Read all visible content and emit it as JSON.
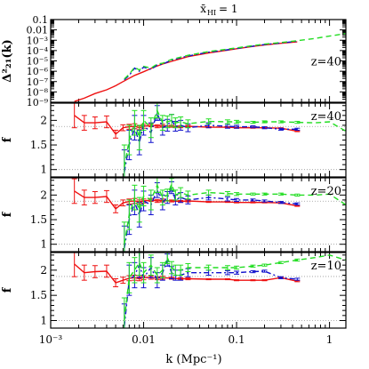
{
  "figure": {
    "title": "x̄_HI = 1",
    "title_main": "x̄",
    "title_sub": "HI",
    "title_value": "= 1",
    "xlabel": "k (Mpc⁻¹)"
  },
  "colors": {
    "red": "#ee1111",
    "green": "#22dd22",
    "blue": "#1111cc",
    "axis": "#000000",
    "ref": "#999999"
  },
  "chart_data": [
    {
      "panel": "top",
      "type": "line",
      "ylabel": "Δ²₂₁(k)",
      "annotation": "z=40",
      "xscale": "log",
      "yscale": "log",
      "xlim": [
        0.001,
        1.5
      ],
      "ylim": [
        1e-09,
        0.1
      ],
      "yticks": [
        "10⁻⁹",
        "10⁻⁸",
        "10⁻⁷",
        "10⁻⁶",
        "10⁻⁵",
        "10⁻⁴",
        "10⁻³",
        "0.01",
        "0.1"
      ],
      "xticks": [
        "10⁻³",
        "0.01",
        "0.1",
        "1"
      ],
      "series": [
        {
          "color": "red",
          "style": "solid",
          "x": [
            0.0018,
            0.0023,
            0.003,
            0.004,
            0.005,
            0.006,
            0.008,
            0.01,
            0.013,
            0.016,
            0.02,
            0.025,
            0.03,
            0.05,
            0.08,
            0.1,
            0.15,
            0.2,
            0.3,
            0.45
          ],
          "y": [
            1.2e-09,
            2.5e-09,
            7e-09,
            1.6e-08,
            4e-08,
            1e-07,
            4e-07,
            9e-07,
            2.5e-06,
            5e-06,
            9e-06,
            1.6e-05,
            2.6e-05,
            6e-05,
            0.00011,
            0.00015,
            0.00025,
            0.00035,
            0.0005,
            0.0007
          ]
        },
        {
          "color": "blue",
          "style": "dashdot",
          "x": [
            0.0062,
            0.007,
            0.008,
            0.009,
            0.01,
            0.012,
            0.014,
            0.016,
            0.02,
            0.025,
            0.03,
            0.05,
            0.08,
            0.1,
            0.15,
            0.2,
            0.3,
            0.45
          ],
          "y": [
            1.5e-07,
            4e-07,
            2e-06,
            1e-06,
            2.5e-06,
            1.5e-06,
            4e-06,
            5e-06,
            1.2e-05,
            2e-05,
            3e-05,
            7e-05,
            0.00012,
            0.00016,
            0.00027,
            0.00038,
            0.00055,
            0.0008
          ]
        },
        {
          "color": "green",
          "style": "dashed",
          "x": [
            0.0062,
            0.007,
            0.008,
            0.009,
            0.01,
            0.012,
            0.014,
            0.016,
            0.02,
            0.025,
            0.03,
            0.05,
            0.08,
            0.1,
            0.15,
            0.2,
            0.3,
            0.45,
            0.7,
            1.0,
            1.5
          ],
          "y": [
            1.8e-07,
            5e-07,
            2.5e-06,
            1.3e-06,
            3e-06,
            2e-06,
            5e-06,
            6e-06,
            1.4e-05,
            2.3e-05,
            3.5e-05,
            8e-05,
            0.00014,
            0.00018,
            0.0003,
            0.00042,
            0.0006,
            0.0009,
            0.0015,
            0.0025,
            0.0045
          ]
        }
      ]
    },
    {
      "panel": "z40",
      "type": "line",
      "ylabel": "f",
      "annotation": "z=40",
      "xscale": "log",
      "xlim": [
        0.001,
        1.5
      ],
      "ylim": [
        0.85,
        2.35
      ],
      "yticks": [
        "1",
        "1.5",
        "2"
      ],
      "reference_lines": [
        1,
        1.875
      ],
      "series": [
        {
          "color": "red",
          "style": "solid",
          "x": [
            0.0018,
            0.0023,
            0.003,
            0.004,
            0.005,
            0.006,
            0.007,
            0.008,
            0.009,
            0.01,
            0.012,
            0.014,
            0.016,
            0.02,
            0.025,
            0.03,
            0.05,
            0.08,
            0.1,
            0.15,
            0.2,
            0.3,
            0.45
          ],
          "y": [
            2.1,
            1.95,
            1.95,
            1.97,
            1.72,
            1.85,
            1.87,
            1.88,
            1.85,
            1.88,
            1.9,
            1.88,
            1.89,
            1.88,
            1.87,
            1.88,
            1.86,
            1.86,
            1.85,
            1.85,
            1.85,
            1.84,
            1.78
          ],
          "err": [
            0.25,
            0.15,
            0.12,
            0.12,
            0.08,
            0.06,
            0.05,
            0.05,
            0.04,
            0.04,
            0.03,
            0.03,
            0.03,
            0.02,
            0.02,
            0.02,
            0.01,
            0.01,
            0.01,
            0.01,
            0.01,
            0.01,
            0.01
          ]
        },
        {
          "color": "blue",
          "style": "dashdot",
          "x": [
            0.0062,
            0.007,
            0.008,
            0.009,
            0.01,
            0.012,
            0.014,
            0.016,
            0.018,
            0.02,
            0.022,
            0.025,
            0.03,
            0.05,
            0.08,
            0.1,
            0.15,
            0.2,
            0.3,
            0.45
          ],
          "y": [
            0.95,
            1.5,
            1.85,
            1.55,
            1.9,
            1.75,
            2.15,
            1.85,
            1.9,
            2.0,
            1.88,
            1.9,
            1.85,
            1.9,
            1.88,
            1.87,
            1.87,
            1.85,
            1.82,
            1.82
          ],
          "err": [
            0.45,
            0.3,
            0.25,
            0.25,
            0.2,
            0.2,
            0.15,
            0.15,
            0.12,
            0.12,
            0.1,
            0.1,
            0.08,
            0.05,
            0.04,
            0.03,
            0.02,
            0.02,
            0.02,
            0.02
          ]
        },
        {
          "color": "green",
          "style": "dashed",
          "x": [
            0.0062,
            0.007,
            0.008,
            0.009,
            0.01,
            0.012,
            0.014,
            0.016,
            0.018,
            0.02,
            0.022,
            0.025,
            0.03,
            0.05,
            0.08,
            0.1,
            0.15,
            0.2,
            0.3,
            0.45,
            0.7,
            1.0,
            1.5
          ],
          "y": [
            1.05,
            1.6,
            1.95,
            1.65,
            2.0,
            1.85,
            2.2,
            1.95,
            1.97,
            2.0,
            1.95,
            1.97,
            1.93,
            1.98,
            1.97,
            1.97,
            1.96,
            1.97,
            1.97,
            1.96,
            1.95,
            1.97,
            1.78
          ],
          "err": [
            0.45,
            0.3,
            0.25,
            0.25,
            0.2,
            0.2,
            0.15,
            0.15,
            0.12,
            0.12,
            0.1,
            0.1,
            0.08,
            0.05,
            0.04,
            0.03,
            0.02,
            0.02,
            0.02,
            0.02,
            0.0,
            0.0,
            0.0
          ]
        }
      ]
    },
    {
      "panel": "z20",
      "type": "line",
      "ylabel": "f",
      "annotation": "z=20",
      "xscale": "log",
      "xlim": [
        0.001,
        1.5
      ],
      "ylim": [
        0.85,
        2.35
      ],
      "yticks": [
        "1",
        "1.5",
        "2"
      ],
      "reference_lines": [
        1,
        1.875
      ],
      "series": [
        {
          "color": "red",
          "style": "solid",
          "x": [
            0.0018,
            0.0023,
            0.003,
            0.004,
            0.005,
            0.006,
            0.007,
            0.008,
            0.009,
            0.01,
            0.012,
            0.014,
            0.016,
            0.02,
            0.025,
            0.03,
            0.05,
            0.08,
            0.1,
            0.15,
            0.2,
            0.3,
            0.45
          ],
          "y": [
            2.08,
            1.95,
            1.95,
            1.97,
            1.72,
            1.84,
            1.87,
            1.88,
            1.86,
            1.88,
            1.9,
            1.88,
            1.89,
            1.88,
            1.87,
            1.88,
            1.86,
            1.86,
            1.85,
            1.85,
            1.85,
            1.84,
            1.78
          ],
          "err": [
            0.25,
            0.15,
            0.12,
            0.12,
            0.08,
            0.06,
            0.05,
            0.05,
            0.04,
            0.04,
            0.03,
            0.03,
            0.03,
            0.02,
            0.02,
            0.02,
            0.01,
            0.01,
            0.01,
            0.01,
            0.01,
            0.01,
            0.01
          ]
        },
        {
          "color": "blue",
          "style": "dashdot",
          "x": [
            0.0062,
            0.007,
            0.008,
            0.009,
            0.01,
            0.012,
            0.014,
            0.016,
            0.018,
            0.02,
            0.022,
            0.025,
            0.03,
            0.05,
            0.08,
            0.1,
            0.15,
            0.2,
            0.3,
            0.45
          ],
          "y": [
            0.92,
            1.5,
            1.85,
            1.6,
            1.88,
            1.8,
            2.1,
            1.85,
            1.95,
            2.15,
            1.9,
            1.95,
            1.9,
            1.95,
            1.92,
            1.9,
            1.9,
            1.88,
            1.85,
            1.82
          ],
          "err": [
            0.45,
            0.3,
            0.25,
            0.25,
            0.2,
            0.2,
            0.15,
            0.15,
            0.12,
            0.12,
            0.1,
            0.1,
            0.08,
            0.05,
            0.04,
            0.03,
            0.02,
            0.02,
            0.02,
            0.02
          ]
        },
        {
          "color": "green",
          "style": "dashed",
          "x": [
            0.0062,
            0.007,
            0.008,
            0.009,
            0.01,
            0.012,
            0.014,
            0.016,
            0.018,
            0.02,
            0.022,
            0.025,
            0.03,
            0.05,
            0.08,
            0.1,
            0.15,
            0.2,
            0.3,
            0.45,
            0.7,
            1.0,
            1.5
          ],
          "y": [
            1.0,
            1.6,
            1.95,
            1.7,
            1.98,
            1.9,
            2.2,
            1.95,
            2.0,
            2.22,
            2.0,
            2.05,
            2.0,
            2.05,
            2.03,
            2.02,
            2.02,
            2.02,
            2.02,
            2.0,
            2.0,
            2.02,
            1.8
          ],
          "err": [
            0.45,
            0.3,
            0.25,
            0.25,
            0.2,
            0.2,
            0.15,
            0.15,
            0.12,
            0.12,
            0.1,
            0.1,
            0.08,
            0.05,
            0.04,
            0.03,
            0.02,
            0.02,
            0.02,
            0.02,
            0.0,
            0.0,
            0.0
          ]
        }
      ]
    },
    {
      "panel": "z10",
      "type": "line",
      "ylabel": "f",
      "annotation": "z=10",
      "xscale": "log",
      "xlim": [
        0.001,
        1.5
      ],
      "ylim": [
        0.85,
        2.35
      ],
      "yticks": [
        "1",
        "1.5",
        "2"
      ],
      "reference_lines": [
        1,
        1.875
      ],
      "series": [
        {
          "color": "red",
          "style": "solid",
          "x": [
            0.0018,
            0.0023,
            0.003,
            0.004,
            0.005,
            0.006,
            0.007,
            0.008,
            0.009,
            0.01,
            0.012,
            0.014,
            0.016,
            0.02,
            0.025,
            0.03,
            0.05,
            0.08,
            0.1,
            0.15,
            0.2,
            0.3,
            0.45
          ],
          "y": [
            2.12,
            1.95,
            1.97,
            1.98,
            1.75,
            1.8,
            1.84,
            1.85,
            1.83,
            1.85,
            1.85,
            1.84,
            1.85,
            1.84,
            1.83,
            1.83,
            1.82,
            1.82,
            1.8,
            1.8,
            1.8,
            1.85,
            1.78
          ],
          "err": [
            0.25,
            0.15,
            0.12,
            0.12,
            0.08,
            0.06,
            0.05,
            0.05,
            0.04,
            0.04,
            0.03,
            0.03,
            0.03,
            0.02,
            0.02,
            0.02,
            0.01,
            0.01,
            0.01,
            0.01,
            0.01,
            0.01,
            0.01
          ]
        },
        {
          "color": "blue",
          "style": "dashdot",
          "x": [
            0.0062,
            0.007,
            0.008,
            0.009,
            0.01,
            0.012,
            0.014,
            0.016,
            0.018,
            0.02,
            0.022,
            0.025,
            0.03,
            0.05,
            0.08,
            0.1,
            0.15,
            0.2,
            0.3,
            0.45
          ],
          "y": [
            0.88,
            1.8,
            1.9,
            2.1,
            1.85,
            2.05,
            1.8,
            1.95,
            2.2,
            1.95,
            1.9,
            1.9,
            1.95,
            1.95,
            1.95,
            1.95,
            1.97,
            1.98,
            1.85,
            1.82
          ],
          "err": [
            0.45,
            0.3,
            0.25,
            0.25,
            0.2,
            0.2,
            0.15,
            0.15,
            0.12,
            0.12,
            0.1,
            0.1,
            0.08,
            0.05,
            0.04,
            0.03,
            0.02,
            0.02,
            0.02,
            0.02
          ]
        },
        {
          "color": "green",
          "style": "dashed",
          "x": [
            0.0062,
            0.007,
            0.008,
            0.009,
            0.01,
            0.012,
            0.014,
            0.016,
            0.018,
            0.02,
            0.022,
            0.025,
            0.03,
            0.05,
            0.08,
            0.1,
            0.15,
            0.2,
            0.3,
            0.45,
            0.7,
            1.0,
            1.5
          ],
          "y": [
            1.0,
            1.85,
            2.0,
            2.15,
            1.95,
            2.1,
            1.9,
            2.0,
            2.25,
            2.05,
            2.0,
            2.0,
            2.05,
            2.05,
            2.05,
            2.05,
            2.08,
            2.1,
            2.15,
            2.2,
            2.25,
            2.3,
            2.2
          ],
          "err": [
            0.45,
            0.3,
            0.25,
            0.25,
            0.2,
            0.2,
            0.15,
            0.15,
            0.12,
            0.12,
            0.1,
            0.1,
            0.08,
            0.05,
            0.04,
            0.03,
            0.02,
            0.02,
            0.02,
            0.02,
            0.0,
            0.0,
            0.0
          ]
        }
      ]
    }
  ]
}
